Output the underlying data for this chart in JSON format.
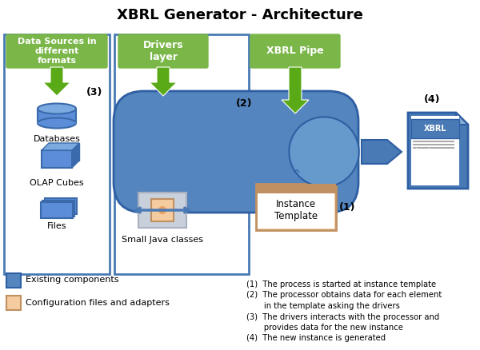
{
  "title": "XBRL Generator - Architecture",
  "title_fontsize": 13,
  "colors": {
    "green_box": "#7ab648",
    "green_arrow": "#5aaa18",
    "blue_main": "#4a7ab5",
    "blue_pill": "#5585be",
    "blue_circle": "#6699cc",
    "blue_border": "#2e5fa3",
    "blue_panel_border": "#4a7ab5",
    "orange_light": "#f5cba0",
    "orange_center": "#e8a060",
    "orange_border": "#c09060",
    "steel_blue": "#5080b0",
    "arrow_blue": "#4a7ab5",
    "white": "#ffffff",
    "cylinder_face": "#5b8dd9",
    "cylinder_top": "#7aaae0",
    "cylinder_dark": "#3a6aaa",
    "doc_blue": "#4a7ab5",
    "widget_gray": "#c8d0dc",
    "widget_gray2": "#aab0c0"
  },
  "notes": [
    "(1)   The process is started at instance template",
    "(2)   The processor obtains data for each element",
    "         in the template asking the drivers",
    "(3)   The drivers interacts with the processor and",
    "         provides data for the new instance",
    "(4)   The new instance is generated"
  ]
}
